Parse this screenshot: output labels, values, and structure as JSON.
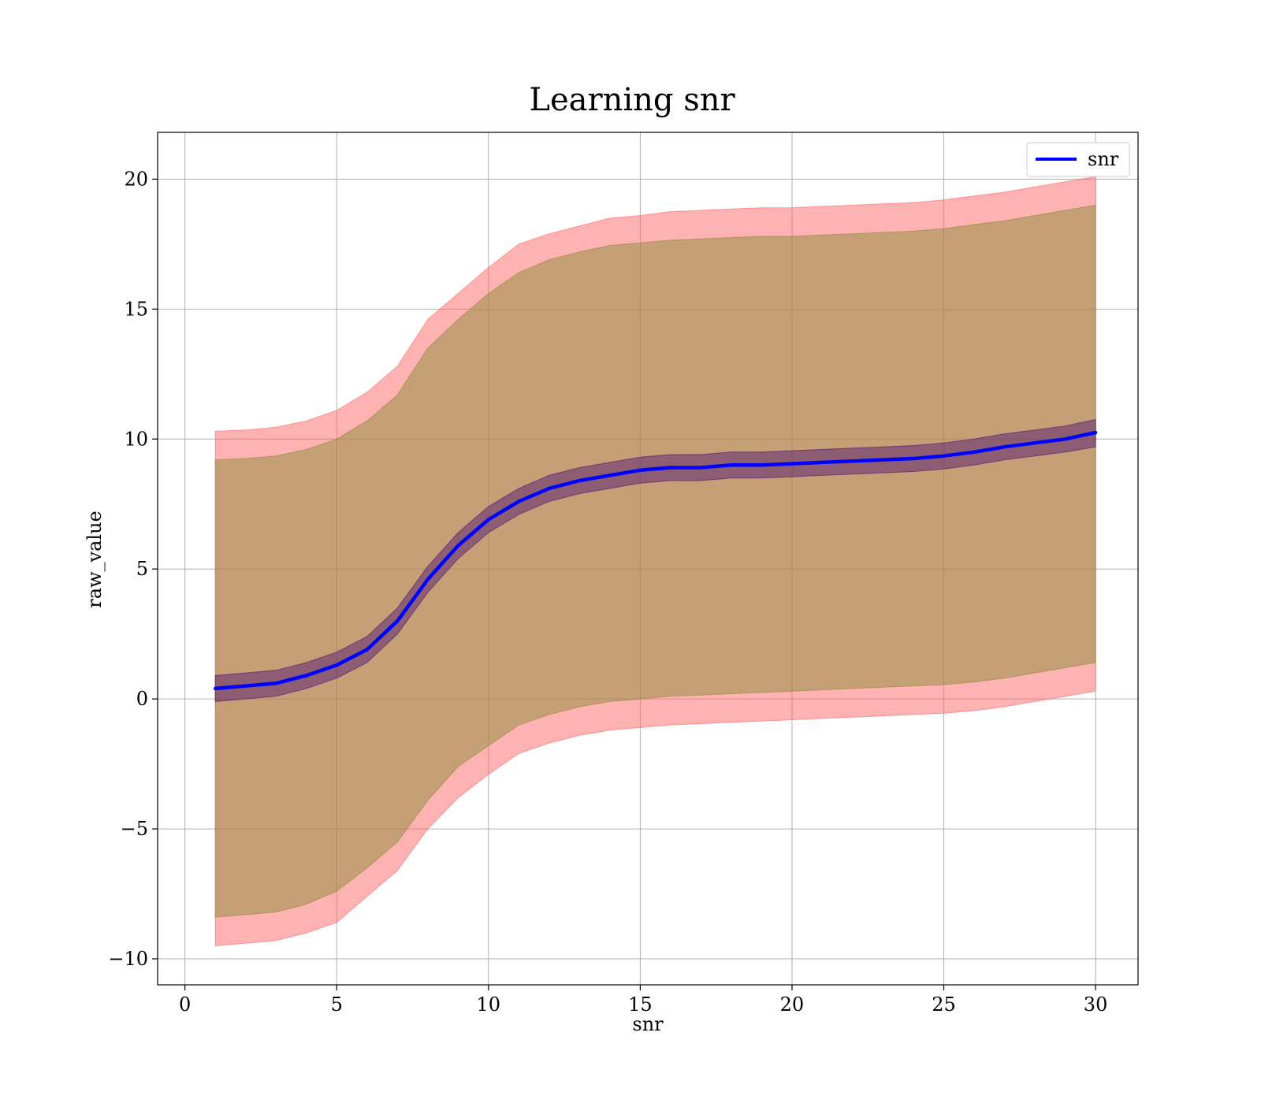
{
  "chart_data": {
    "type": "line",
    "title": "Learning snr",
    "xlabel": "snr",
    "ylabel": "raw_value",
    "xlim": [
      -0.9,
      31.4
    ],
    "ylim": [
      -11,
      21.8
    ],
    "xticks": [
      0,
      5,
      10,
      15,
      20,
      25,
      30
    ],
    "yticks": [
      -10,
      -5,
      0,
      5,
      10,
      15,
      20
    ],
    "xtick_labels": [
      "0",
      "5",
      "10",
      "15",
      "20",
      "25",
      "30"
    ],
    "ytick_labels": [
      "−10",
      "−5",
      "0",
      "5",
      "10",
      "15",
      "20"
    ],
    "grid": true,
    "legend": {
      "position": "top-right",
      "entries": [
        "snr"
      ]
    },
    "series": [
      {
        "name": "snr",
        "color": "#0000ff",
        "x": [
          1,
          2,
          3,
          4,
          5,
          6,
          7,
          8,
          9,
          10,
          11,
          12,
          13,
          14,
          15,
          16,
          17,
          18,
          19,
          20,
          21,
          22,
          23,
          24,
          25,
          26,
          27,
          28,
          29,
          30
        ],
        "values": [
          0.4,
          0.5,
          0.6,
          0.9,
          1.3,
          1.9,
          3.0,
          4.6,
          5.9,
          6.9,
          7.6,
          8.1,
          8.4,
          8.6,
          8.8,
          8.9,
          8.9,
          9.0,
          9.0,
          9.05,
          9.1,
          9.15,
          9.2,
          9.25,
          9.35,
          9.5,
          9.7,
          9.85,
          10.0,
          10.25
        ]
      }
    ],
    "bands": [
      {
        "color": "#ff6666",
        "lower": [
          -9.5,
          -9.4,
          -9.3,
          -9.0,
          -8.6,
          -7.6,
          -6.6,
          -5.0,
          -3.8,
          -2.9,
          -2.1,
          -1.7,
          -1.4,
          -1.2,
          -1.1,
          -1.0,
          -0.95,
          -0.9,
          -0.85,
          -0.8,
          -0.75,
          -0.7,
          -0.65,
          -0.6,
          -0.55,
          -0.45,
          -0.3,
          -0.1,
          0.1,
          0.3
        ],
        "upper": [
          10.3,
          10.35,
          10.45,
          10.7,
          11.1,
          11.8,
          12.8,
          14.6,
          15.6,
          16.6,
          17.5,
          17.9,
          18.2,
          18.5,
          18.6,
          18.75,
          18.8,
          18.85,
          18.9,
          18.9,
          18.95,
          19.0,
          19.05,
          19.1,
          19.2,
          19.35,
          19.5,
          19.7,
          19.9,
          20.1
        ]
      },
      {
        "color": "#8b8b3a",
        "lower": [
          -8.4,
          -8.3,
          -8.2,
          -7.9,
          -7.4,
          -6.5,
          -5.5,
          -3.9,
          -2.6,
          -1.8,
          -1.0,
          -0.6,
          -0.3,
          -0.1,
          0.0,
          0.1,
          0.15,
          0.2,
          0.25,
          0.3,
          0.35,
          0.4,
          0.45,
          0.5,
          0.55,
          0.65,
          0.8,
          1.0,
          1.2,
          1.4
        ],
        "upper": [
          9.2,
          9.25,
          9.35,
          9.6,
          10.0,
          10.7,
          11.7,
          13.5,
          14.6,
          15.6,
          16.4,
          16.9,
          17.2,
          17.45,
          17.55,
          17.65,
          17.7,
          17.75,
          17.8,
          17.8,
          17.85,
          17.9,
          17.95,
          18.0,
          18.1,
          18.25,
          18.4,
          18.6,
          18.8,
          19.0
        ]
      },
      {
        "color": "#4a1070",
        "lower": [
          -0.1,
          0.0,
          0.1,
          0.4,
          0.8,
          1.4,
          2.5,
          4.1,
          5.4,
          6.4,
          7.1,
          7.6,
          7.9,
          8.1,
          8.3,
          8.4,
          8.4,
          8.5,
          8.5,
          8.55,
          8.6,
          8.65,
          8.7,
          8.75,
          8.85,
          9.0,
          9.2,
          9.35,
          9.5,
          9.7
        ],
        "upper": [
          0.9,
          1.0,
          1.1,
          1.4,
          1.8,
          2.4,
          3.5,
          5.1,
          6.4,
          7.4,
          8.1,
          8.6,
          8.9,
          9.1,
          9.3,
          9.4,
          9.4,
          9.5,
          9.5,
          9.55,
          9.6,
          9.65,
          9.7,
          9.75,
          9.85,
          10.0,
          10.2,
          10.35,
          10.5,
          10.75
        ]
      }
    ]
  }
}
